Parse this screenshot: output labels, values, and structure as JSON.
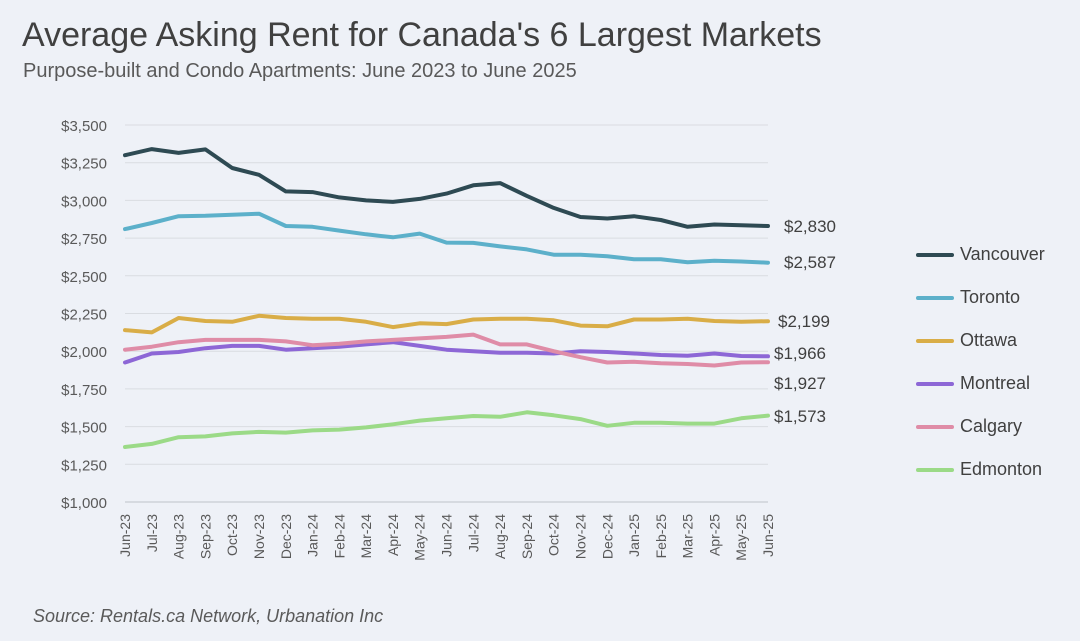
{
  "title": "Average Asking Rent for Canada's 6 Largest Markets",
  "subtitle": "Purpose-built and Condo Apartments: June 2023 to June 2025",
  "source": "Source: Rentals.ca Network, Urbanation Inc",
  "chart_data": {
    "type": "line",
    "title": "Average Asking Rent for Canada's 6 Largest Markets",
    "subtitle": "Purpose-built and Condo Apartments: June 2023 to June 2025",
    "xlabel": "",
    "ylabel": "",
    "ylim": [
      1000,
      3500
    ],
    "y_ticks": [
      "$1,000",
      "$1,250",
      "$1,500",
      "$1,750",
      "$2,000",
      "$2,250",
      "$2,500",
      "$2,750",
      "$3,000",
      "$3,250",
      "$3,500"
    ],
    "grid": true,
    "legend_position": "right",
    "categories": [
      "Jun-23",
      "Jul-23",
      "Aug-23",
      "Sep-23",
      "Oct-23",
      "Nov-23",
      "Dec-23",
      "Jan-24",
      "Feb-24",
      "Mar-24",
      "Apr-24",
      "May-24",
      "Jun-24",
      "Jul-24",
      "Aug-24",
      "Sep-24",
      "Oct-24",
      "Nov-24",
      "Dec-24",
      "Jan-25",
      "Feb-25",
      "Mar-25",
      "Apr-25",
      "May-25",
      "Jun-25"
    ],
    "series": [
      {
        "name": "Vancouver",
        "color": "#2e4a53",
        "end_label": "$2,830",
        "values": [
          3300,
          3340,
          3315,
          3338,
          3215,
          3170,
          3060,
          3055,
          3020,
          3000,
          2990,
          3010,
          3045,
          3100,
          3115,
          3030,
          2950,
          2890,
          2880,
          2895,
          2870,
          2825,
          2840,
          2835,
          2830
        ]
      },
      {
        "name": "Toronto",
        "color": "#5cb0ca",
        "end_label": "$2,587",
        "values": [
          2810,
          2850,
          2895,
          2898,
          2905,
          2912,
          2830,
          2825,
          2800,
          2775,
          2755,
          2780,
          2720,
          2718,
          2695,
          2675,
          2640,
          2640,
          2630,
          2610,
          2610,
          2590,
          2600,
          2595,
          2587
        ]
      },
      {
        "name": "Ottawa",
        "color": "#d9ad47",
        "end_label": "$2,199",
        "values": [
          2140,
          2125,
          2220,
          2200,
          2195,
          2235,
          2220,
          2215,
          2215,
          2195,
          2160,
          2185,
          2180,
          2210,
          2215,
          2215,
          2205,
          2170,
          2165,
          2210,
          2210,
          2215,
          2200,
          2195,
          2199
        ]
      },
      {
        "name": "Montreal",
        "color": "#8d67d6",
        "end_label": "$1,966",
        "values": [
          1925,
          1985,
          1995,
          2020,
          2035,
          2035,
          2010,
          2020,
          2030,
          2045,
          2060,
          2035,
          2010,
          2000,
          1990,
          1990,
          1985,
          2000,
          1995,
          1985,
          1975,
          1970,
          1985,
          1968,
          1966
        ]
      },
      {
        "name": "Calgary",
        "color": "#df8ca7",
        "end_label": "$1,927",
        "values": [
          2010,
          2030,
          2060,
          2075,
          2075,
          2075,
          2065,
          2040,
          2050,
          2065,
          2075,
          2085,
          2095,
          2110,
          2045,
          2045,
          2000,
          1960,
          1925,
          1930,
          1920,
          1915,
          1905,
          1925,
          1927
        ]
      },
      {
        "name": "Edmonton",
        "color": "#9bda87",
        "end_label": "$1,573",
        "values": [
          1365,
          1385,
          1430,
          1435,
          1455,
          1465,
          1460,
          1475,
          1480,
          1495,
          1515,
          1540,
          1555,
          1570,
          1565,
          1595,
          1575,
          1550,
          1505,
          1525,
          1525,
          1520,
          1520,
          1555,
          1573
        ]
      }
    ]
  }
}
